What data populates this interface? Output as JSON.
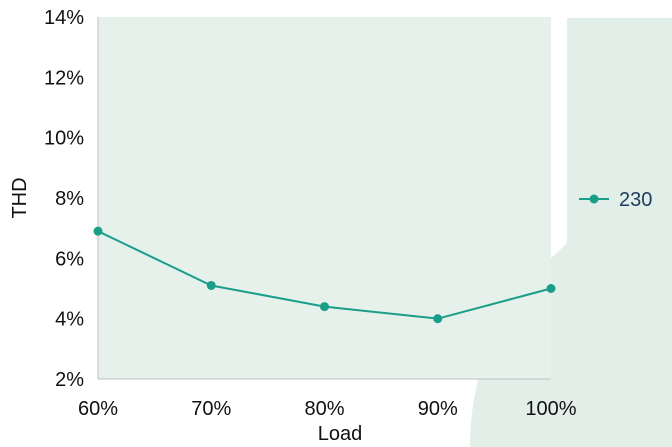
{
  "chart_data": {
    "type": "line",
    "title": "",
    "xlabel": "Load",
    "ylabel": "THD",
    "categories": [
      "60%",
      "70%",
      "80%",
      "90%",
      "100%"
    ],
    "series": [
      {
        "name": "230",
        "values": [
          6.9,
          5.1,
          4.4,
          4.0,
          5.0
        ],
        "color": "#1a9e8a"
      }
    ],
    "y_ticks": [
      "2%",
      "4%",
      "6%",
      "8%",
      "10%",
      "12%",
      "14%"
    ],
    "ylim": [
      2,
      14
    ],
    "grid": false,
    "legend_position": "right"
  },
  "colors": {
    "plot_background": "#e6f1ec",
    "decoration": "#e2efe8",
    "axis": "#bfbfbf"
  }
}
